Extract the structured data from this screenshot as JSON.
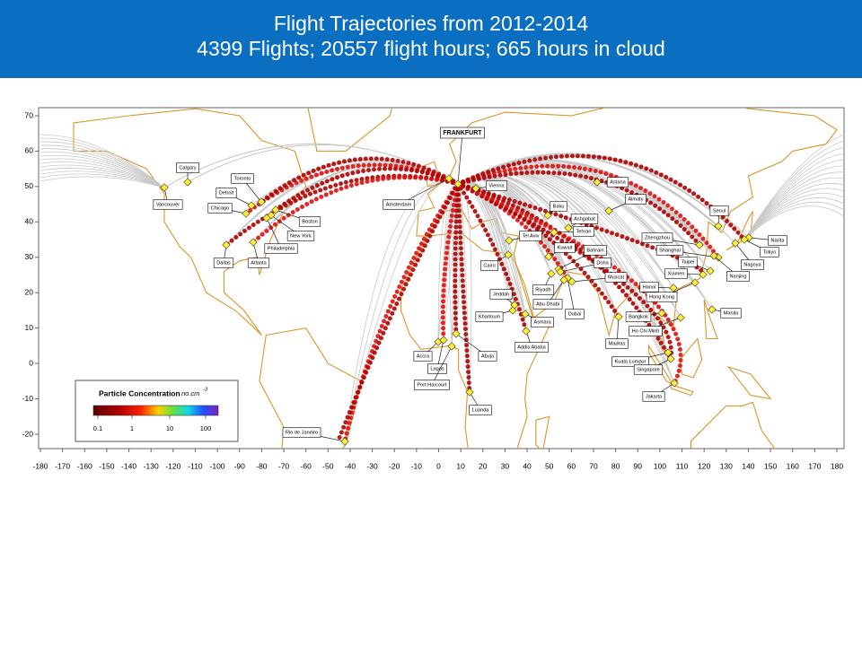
{
  "header": {
    "title_line1": "Flight Trajectories from 2012-2014",
    "title_line2": "4399 Flights; 20557 flight hours; 665 hours in cloud"
  },
  "map": {
    "x_ticks": [
      -180,
      -170,
      -160,
      -150,
      -140,
      -130,
      -120,
      -110,
      -100,
      -90,
      -80,
      -70,
      -60,
      -50,
      -40,
      -30,
      -20,
      -10,
      0,
      10,
      20,
      30,
      40,
      50,
      60,
      70,
      80,
      90,
      100,
      110,
      120,
      130,
      140,
      150,
      160,
      170,
      180
    ],
    "y_ticks": [
      70,
      60,
      50,
      40,
      30,
      20,
      10,
      0,
      -10,
      -20
    ],
    "hub": "FRANKFURT",
    "cities": [
      "Calgary",
      "Vancouver",
      "Toronto",
      "Detroit",
      "Chicago",
      "Boston",
      "New York",
      "Philadelphia",
      "Dallas",
      "Atlanta",
      "Amsterdam",
      "Vienna",
      "Baku",
      "Ashgabat",
      "Astana",
      "Almaty",
      "Tehran",
      "Tel Aviv",
      "Cairo",
      "Kuwait",
      "Bahrain",
      "Doha",
      "Muscat",
      "Riyadh",
      "Dubai",
      "Abu Dhabi",
      "Jeddah",
      "Asmara",
      "Khartoum",
      "Addis Ababa",
      "Accra",
      "Abuja",
      "Lagos",
      "Port Harcourt",
      "Luanda",
      "Rio de Janeiro",
      "Seoul",
      "Zhengzhou",
      "Shanghai",
      "Narita",
      "Tokyo",
      "Nagoya",
      "Nanjing",
      "Taipei",
      "Xiamen",
      "Hanoi",
      "Hong Kong",
      "Manila",
      "Bangkok",
      "Ho Chi Minh",
      "Madras",
      "Kuala Lumpur",
      "Singapore",
      "Jakarta"
    ]
  },
  "legend": {
    "title": "Particle Concentration",
    "unit": "no.cm",
    "unit_exponent": "-3",
    "ticks": [
      "0.1",
      "1",
      "10",
      "100"
    ]
  }
}
